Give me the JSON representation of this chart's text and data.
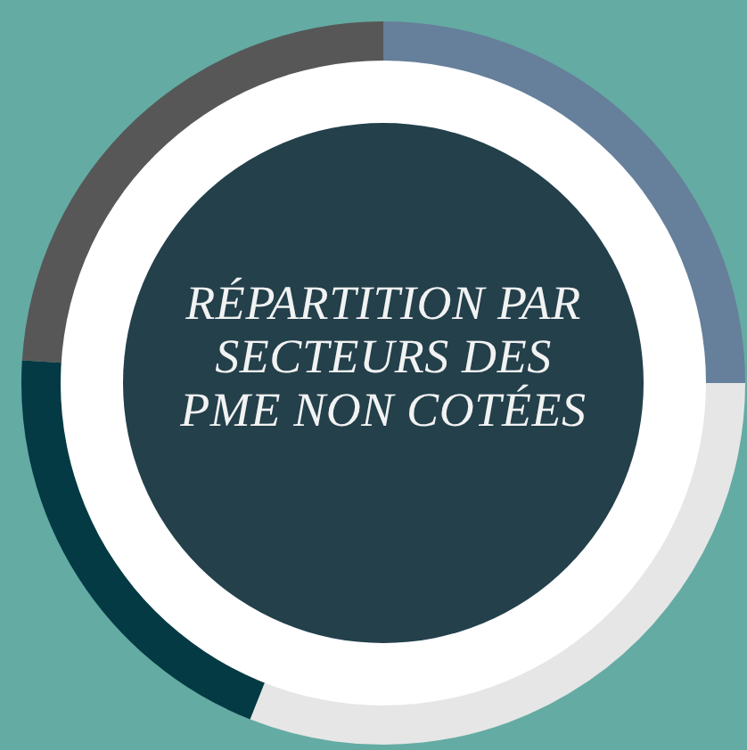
{
  "chart_data": {
    "type": "donut",
    "title": "RÉPARTITION PAR SECTEURS DES PME NON COTÉES",
    "categories": [
      null,
      null,
      null,
      null
    ],
    "values": [
      25,
      31,
      20,
      24
    ],
    "colors": [
      "#667f9a",
      "#e6e6e6",
      "#033a44",
      "#575757"
    ],
    "legend": false
  }
}
